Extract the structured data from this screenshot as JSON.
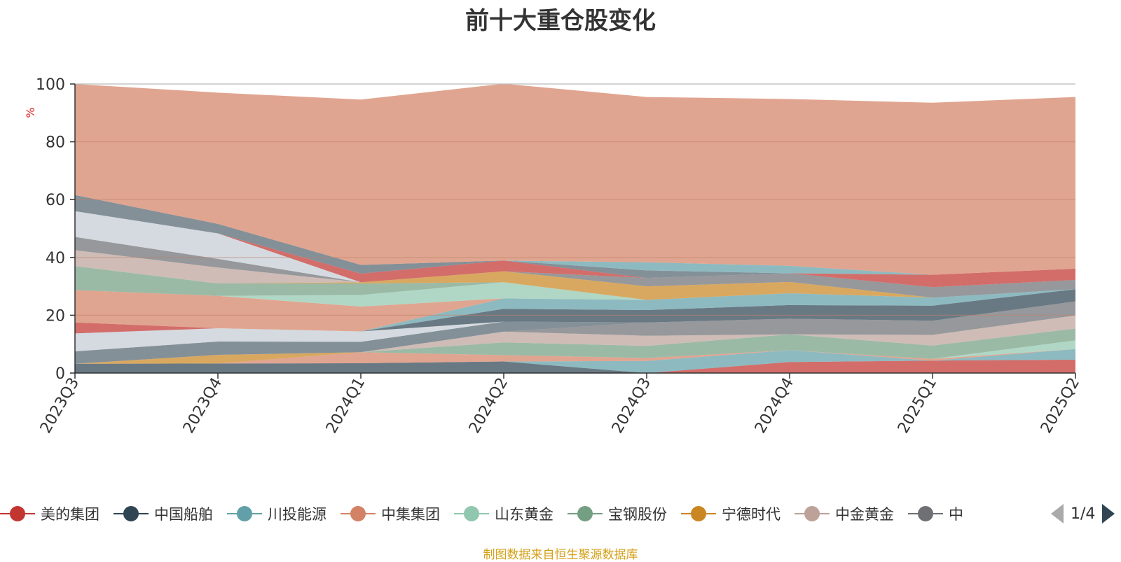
{
  "chart_data": {
    "type": "area",
    "stacked": true,
    "title": "前十大重仓股变化",
    "ylabel": "%",
    "ylim": [
      0,
      100
    ],
    "yticks": [
      0,
      20,
      40,
      60,
      80,
      100
    ],
    "categories": [
      "2023Q3",
      "2023Q4",
      "2024Q1",
      "2024Q2",
      "2024Q3",
      "2024Q4",
      "2025Q1",
      "2025Q2"
    ],
    "grid": true,
    "series": [
      {
        "name": "美的集团",
        "color": "#c23531",
        "values": [
          0,
          0,
          0,
          0,
          0,
          3.8,
          4.3,
          4.6
        ]
      },
      {
        "name": "中国船舶",
        "color": "#2f4554",
        "values": [
          3.2,
          3.3,
          3.4,
          4.0,
          0,
          0,
          0,
          0
        ]
      },
      {
        "name": "川投能源",
        "color": "#61a0a8",
        "values": [
          0,
          0,
          0,
          0,
          4.2,
          4.1,
          0,
          3.7
        ]
      },
      {
        "name": "中集集团",
        "color": "#d48265",
        "values": [
          0,
          0,
          3.8,
          2.2,
          1.0,
          0,
          0.6,
          0
        ]
      },
      {
        "name": "山东黄金",
        "color": "#91c7ae",
        "values": [
          0,
          0,
          0,
          0,
          0,
          0,
          0,
          3.0
        ]
      },
      {
        "name": "宝钢股份",
        "color": "#749f83",
        "values": [
          0,
          0,
          0,
          4.4,
          4.2,
          5.5,
          4.6,
          4.1
        ]
      },
      {
        "name": "宁德时代",
        "color": "#ca8622",
        "values": [
          0,
          3.0,
          0,
          0,
          0,
          0,
          0,
          0
        ]
      },
      {
        "name": "中金黄金",
        "color": "#bda29a",
        "values": [
          0,
          0,
          0,
          3.7,
          3.5,
          0,
          3.7,
          4.5
        ]
      },
      {
        "name": "中国神华",
        "color": "#6e7074",
        "values": [
          0,
          0,
          0,
          0,
          4.6,
          5.4,
          4.9,
          4.9
        ]
      },
      {
        "name": "",
        "color": "#546570",
        "values": [
          4.3,
          4.6,
          3.6,
          3.5,
          0,
          0,
          0,
          0
        ]
      },
      {
        "name": "",
        "color": "#c4ccd3",
        "values": [
          6.2,
          4.6,
          3.6,
          0,
          0,
          0,
          0,
          0
        ]
      },
      {
        "name": "",
        "color": "#c23531",
        "values": [
          3.8,
          0,
          0,
          0,
          0,
          0,
          0,
          0
        ]
      },
      {
        "name": "",
        "color": "#2f4554",
        "values": [
          0,
          0,
          0,
          4.4,
          4.3,
          4.7,
          5.2,
          4.2
        ]
      },
      {
        "name": "",
        "color": "#61a0a8",
        "values": [
          0,
          0,
          0,
          3.6,
          3.5,
          4.1,
          2.8,
          0
        ]
      },
      {
        "name": "",
        "color": "#d48265",
        "values": [
          11.2,
          11.2,
          8.6,
          0,
          0,
          0,
          0,
          0
        ]
      },
      {
        "name": "",
        "color": "#91c7ae",
        "values": [
          0,
          0,
          4.0,
          5.6,
          0,
          0,
          0,
          0
        ]
      },
      {
        "name": "",
        "color": "#749f83",
        "values": [
          8.3,
          4.3,
          4.0,
          0,
          0,
          0,
          0,
          0
        ]
      },
      {
        "name": "",
        "color": "#ca8622",
        "values": [
          0,
          0,
          0.4,
          3.8,
          4.7,
          3.9,
          0,
          0
        ]
      },
      {
        "name": "",
        "color": "#bda29a",
        "values": [
          5.5,
          5.5,
          0,
          0,
          0,
          0,
          0,
          0
        ]
      },
      {
        "name": "",
        "color": "#6e7074",
        "values": [
          4.6,
          3.0,
          0,
          0,
          2.9,
          3.0,
          3.6,
          3.2
        ]
      },
      {
        "name": "",
        "color": "#c4ccd3",
        "values": [
          8.9,
          8.8,
          0,
          0,
          0,
          0,
          0,
          0
        ]
      },
      {
        "name": "",
        "color": "#c23531",
        "values": [
          0,
          0,
          3.0,
          3.7,
          0,
          0,
          4.3,
          3.9
        ]
      },
      {
        "name": "",
        "color": "#546570",
        "values": [
          5.6,
          3.3,
          3.0,
          0,
          2.6,
          0,
          0,
          0
        ]
      },
      {
        "name": "",
        "color": "#61a0a8",
        "values": [
          0,
          0,
          0,
          0,
          2.8,
          2.6,
          0,
          0
        ]
      },
      {
        "name": "",
        "color": "#d48265",
        "values": [
          38.4,
          45.4,
          57.2,
          61.2,
          57.2,
          57.7,
          59.5,
          59.4
        ]
      }
    ]
  },
  "legend": {
    "items": [
      {
        "label": "美的集团",
        "color": "#c23531"
      },
      {
        "label": "中国船舶",
        "color": "#2f4554"
      },
      {
        "label": "川投能源",
        "color": "#61a0a8"
      },
      {
        "label": "中集集团",
        "color": "#d48265"
      },
      {
        "label": "山东黄金",
        "color": "#91c7ae"
      },
      {
        "label": "宝钢股份",
        "color": "#749f83"
      },
      {
        "label": "宁德时代",
        "color": "#ca8622"
      },
      {
        "label": "中金黄金",
        "color": "#bda29a"
      },
      {
        "label": "中",
        "color": "#6e7074"
      }
    ],
    "pager": "1/4"
  },
  "source_note": "制图数据来自恒生聚源数据库"
}
